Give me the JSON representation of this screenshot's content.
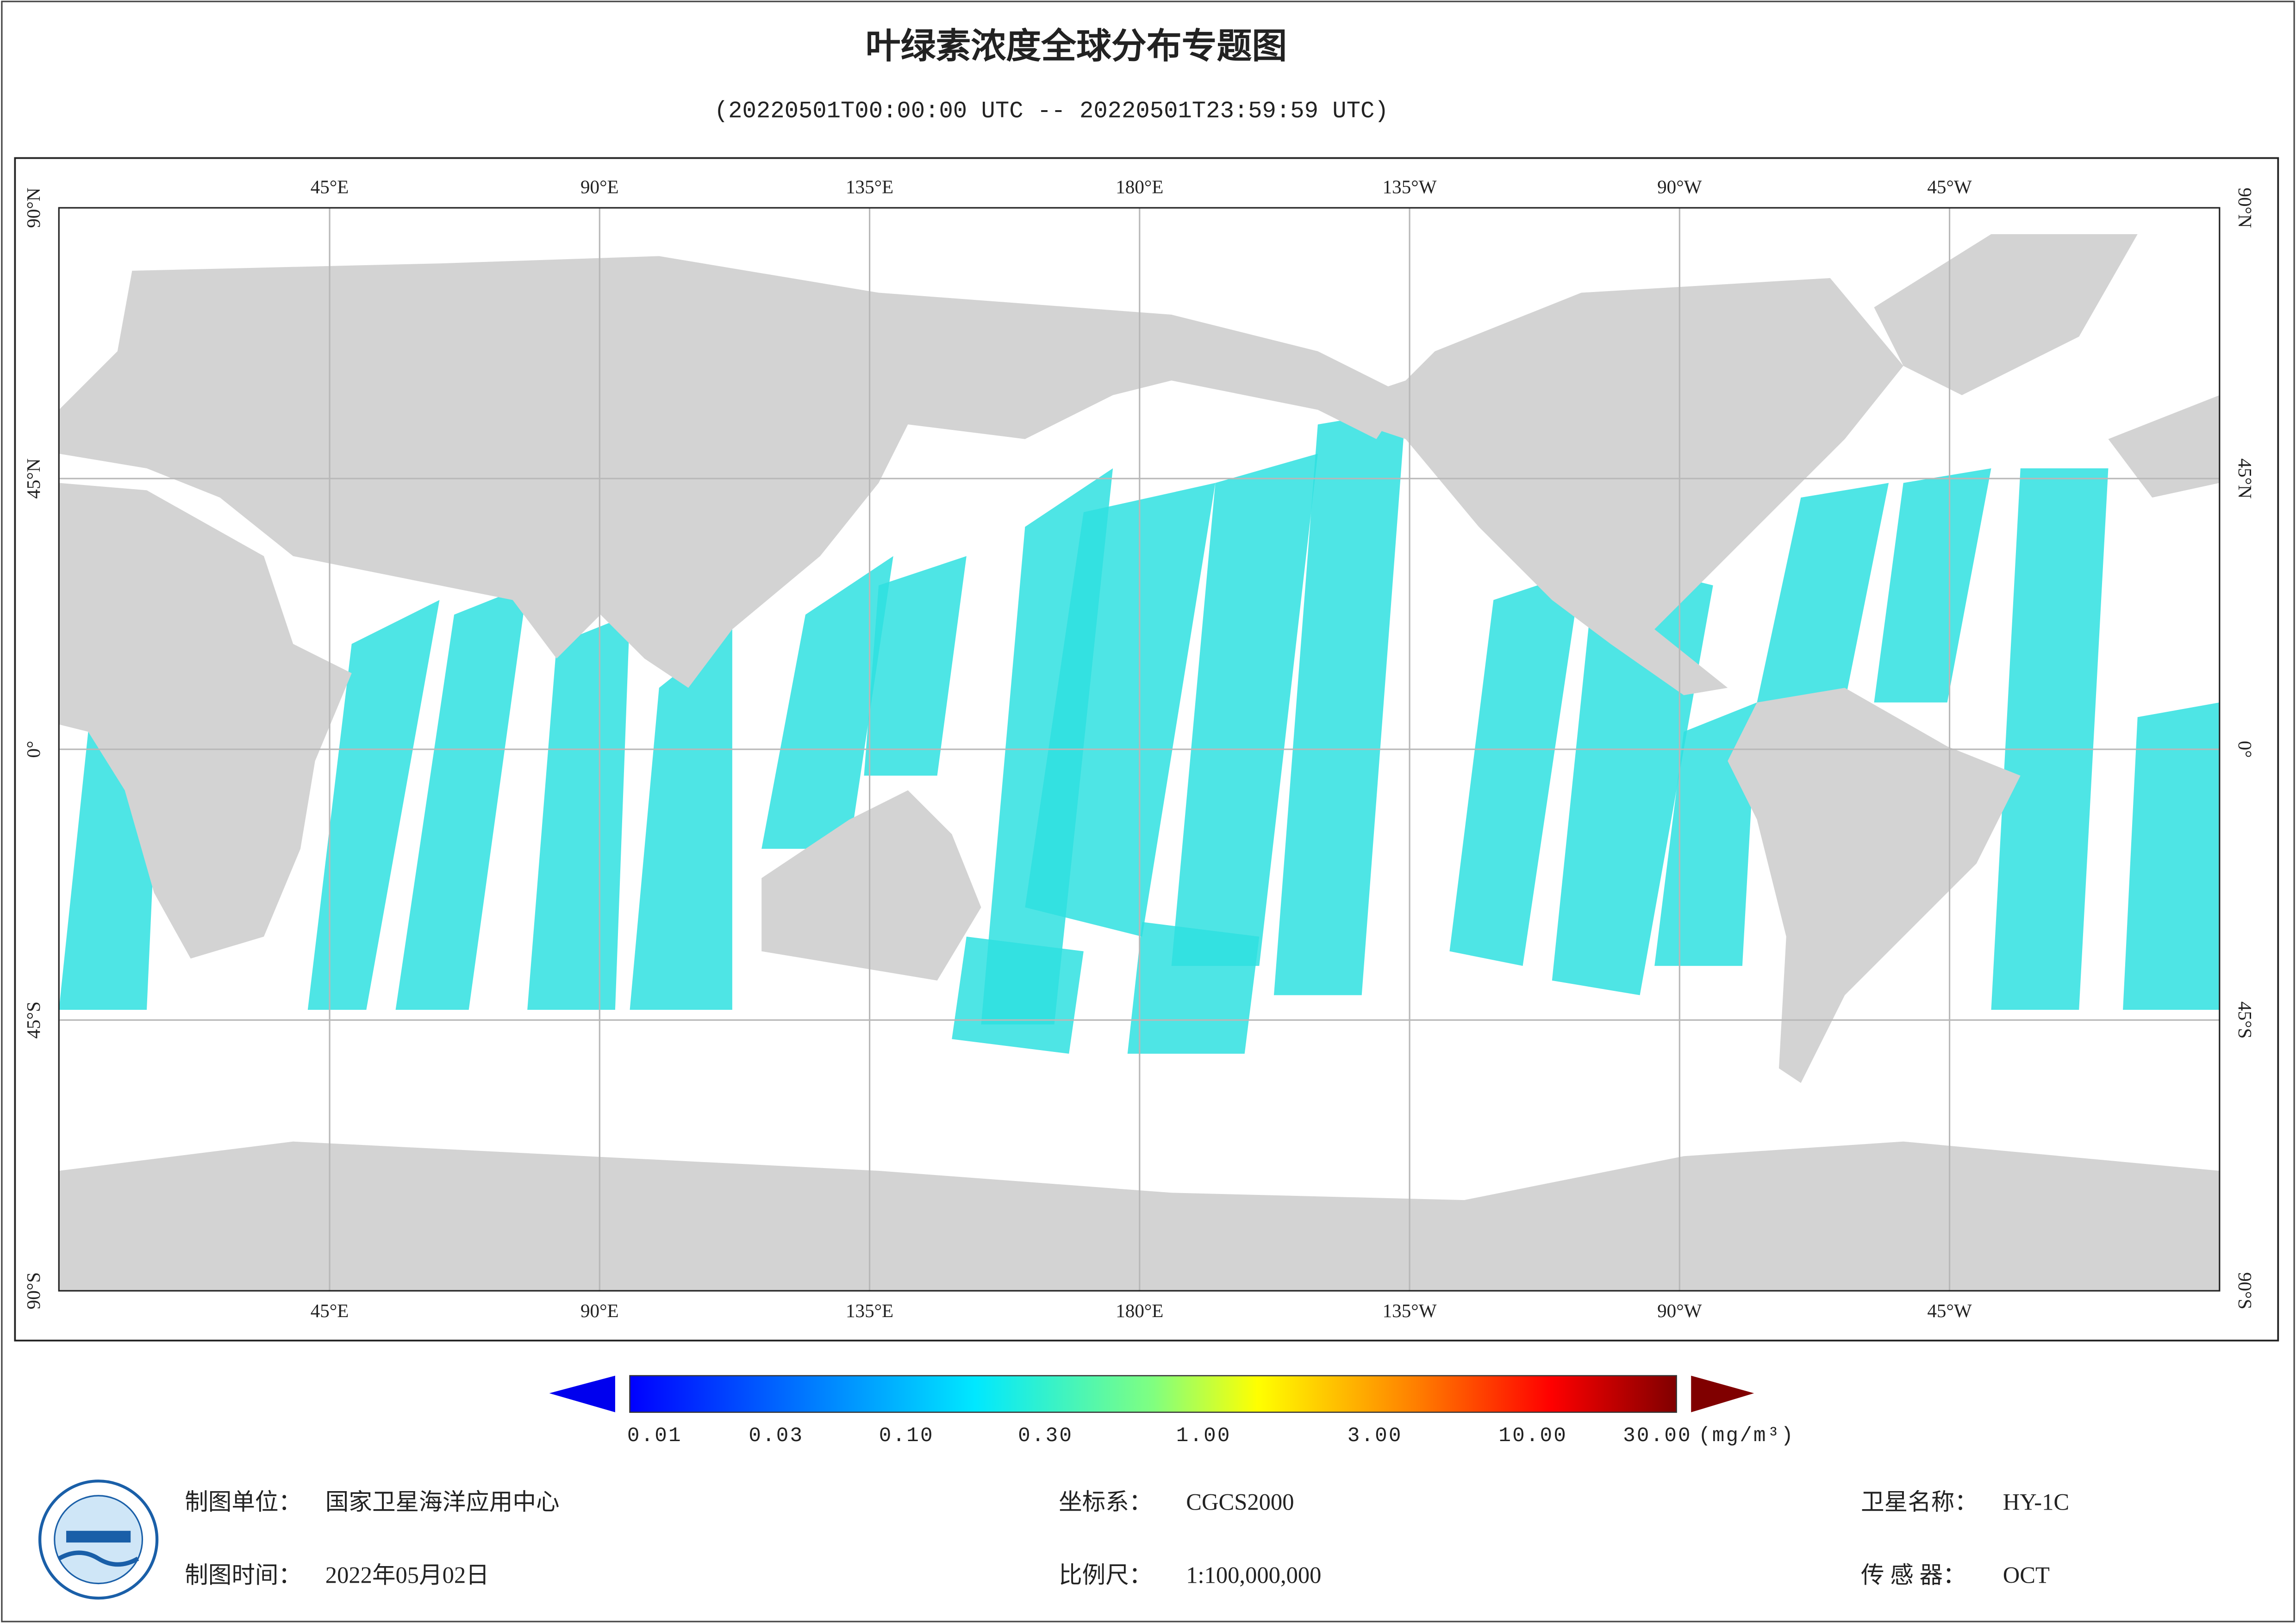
{
  "header": {
    "title": "叶绿素浓度全球分布专题图",
    "subtitle": "(20220501T00:00:00 UTC -- 20220501T23:59:59 UTC)"
  },
  "map": {
    "lon_labels": [
      "45°E",
      "90°E",
      "135°E",
      "180°E",
      "135°W",
      "90°W",
      "45°W"
    ],
    "lat_labels": [
      "90°N",
      "45°N",
      "0°",
      "45°S",
      "90°S"
    ]
  },
  "colorbar": {
    "labels": [
      "0.01",
      "0.03",
      "0.10",
      "0.30",
      "1.00",
      "3.00",
      "10.00",
      "30.00"
    ],
    "unit": "(mg/m³)"
  },
  "footer": {
    "unit_label": "制图单位：",
    "unit": "国家卫星海洋应用中心",
    "date_label": "制图时间：",
    "date": "2022年05月02日",
    "crs_label": "坐标系：",
    "crs": "CGCS2000",
    "scale_label": "比例尺：",
    "scale": "1:100,000,000",
    "satellite_label": "卫星名称：",
    "satellite": "HY-1C",
    "sensor_label": "传 感 器：",
    "sensor": "OCT"
  }
}
